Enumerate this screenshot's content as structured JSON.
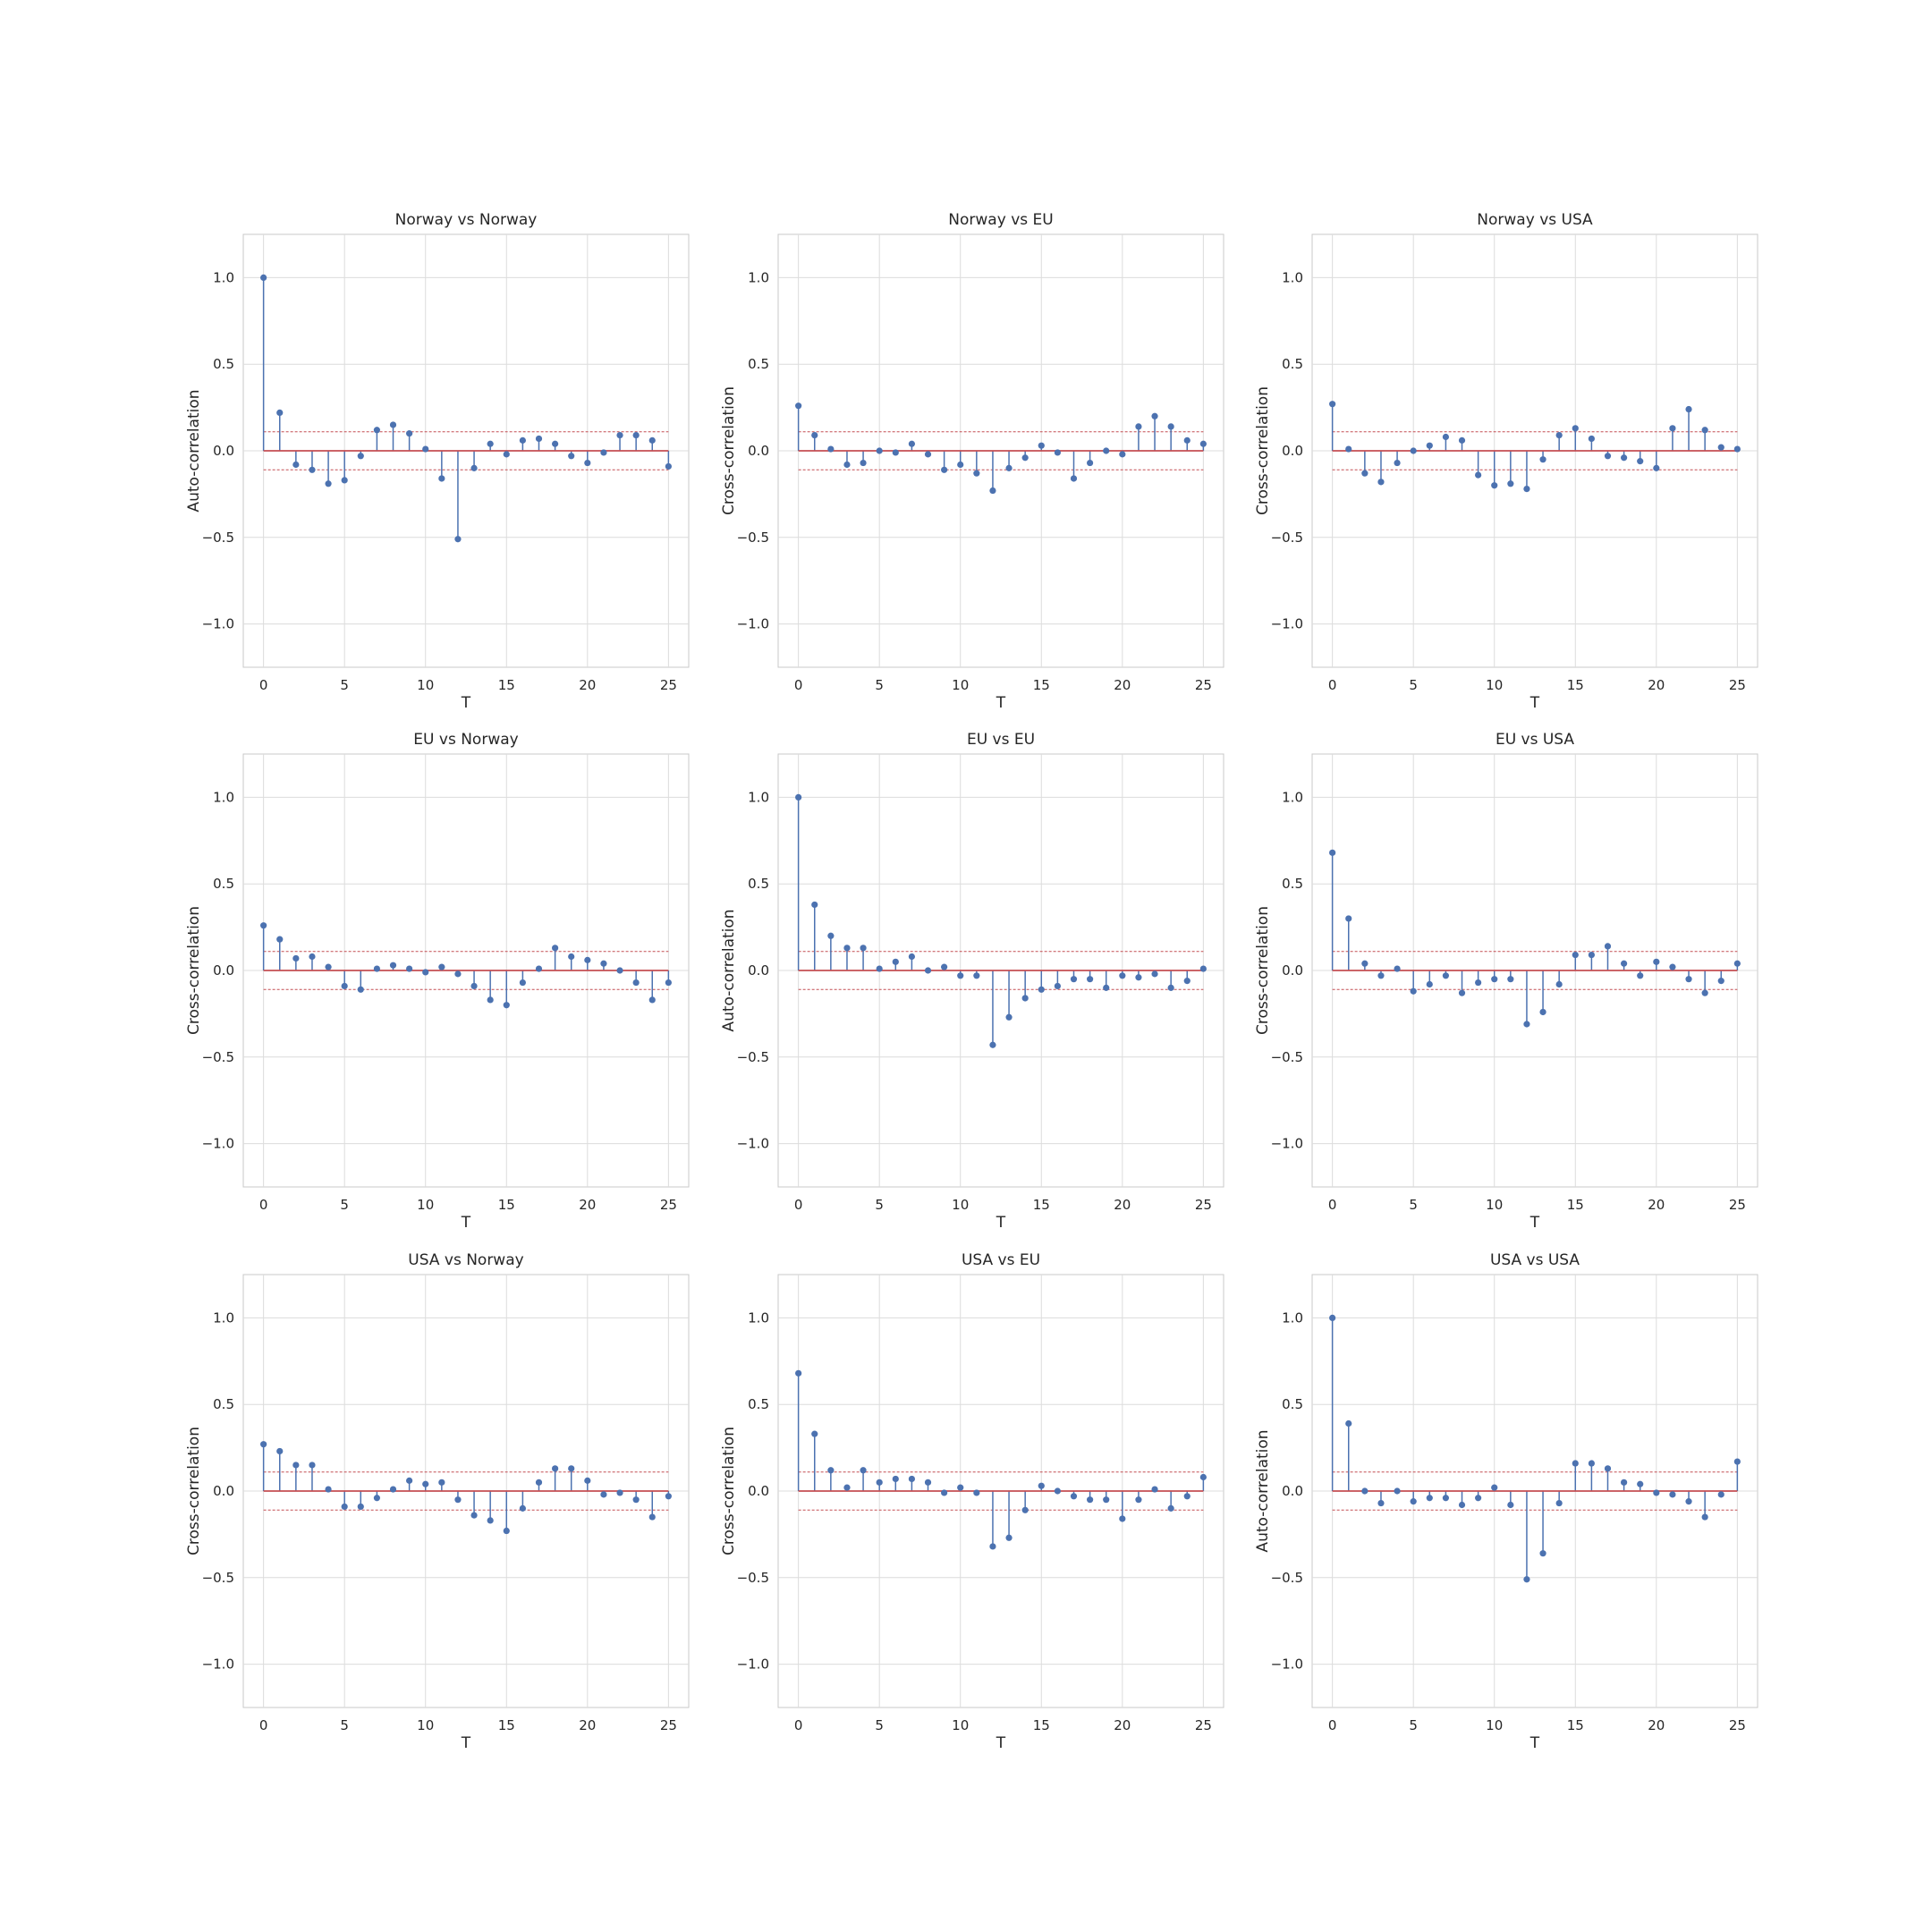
{
  "style": {
    "stem_color": "#4c72b0",
    "baseline_color": "#c44e52",
    "conf_color": "#c44e52",
    "grid_color": "#dcdcdc",
    "frame_color": "#c8c8c8",
    "text_color": "#262626"
  },
  "chart_data": [
    {
      "type": "stem",
      "title": "Norway vs Norway",
      "xlabel": "T",
      "ylabel": "Auto-correlation",
      "xlim": [
        -1.25,
        26.25
      ],
      "ylim": [
        -1.25,
        1.25
      ],
      "xticks": [
        0,
        5,
        10,
        15,
        20,
        25
      ],
      "yticks": [
        -1.0,
        -0.5,
        0.0,
        0.5,
        1.0
      ],
      "ytick_labels": [
        "−1.0",
        "−0.5",
        "0.0",
        "0.5",
        "1.0"
      ],
      "grid": true,
      "conf_band": 0.11,
      "x": [
        0,
        1,
        2,
        3,
        4,
        5,
        6,
        7,
        8,
        9,
        10,
        11,
        12,
        13,
        14,
        15,
        16,
        17,
        18,
        19,
        20,
        21,
        22,
        23,
        24,
        25
      ],
      "values": [
        1.0,
        0.22,
        -0.08,
        -0.11,
        -0.19,
        -0.17,
        -0.03,
        0.12,
        0.15,
        0.1,
        0.01,
        -0.16,
        -0.51,
        -0.1,
        0.04,
        -0.02,
        0.06,
        0.07,
        0.04,
        -0.03,
        -0.07,
        -0.01,
        0.09,
        0.09,
        0.06,
        -0.09
      ]
    },
    {
      "type": "stem",
      "title": "Norway vs EU",
      "xlabel": "T",
      "ylabel": "Cross-correlation",
      "xlim": [
        -1.25,
        26.25
      ],
      "ylim": [
        -1.25,
        1.25
      ],
      "xticks": [
        0,
        5,
        10,
        15,
        20,
        25
      ],
      "yticks": [
        -1.0,
        -0.5,
        0.0,
        0.5,
        1.0
      ],
      "ytick_labels": [
        "−1.0",
        "−0.5",
        "0.0",
        "0.5",
        "1.0"
      ],
      "grid": true,
      "conf_band": 0.11,
      "x": [
        0,
        1,
        2,
        3,
        4,
        5,
        6,
        7,
        8,
        9,
        10,
        11,
        12,
        13,
        14,
        15,
        16,
        17,
        18,
        19,
        20,
        21,
        22,
        23,
        24,
        25
      ],
      "values": [
        0.26,
        0.09,
        0.01,
        -0.08,
        -0.07,
        0.0,
        -0.01,
        0.04,
        -0.02,
        -0.11,
        -0.08,
        -0.13,
        -0.23,
        -0.1,
        -0.04,
        0.03,
        -0.01,
        -0.16,
        -0.07,
        0.0,
        -0.02,
        0.14,
        0.2,
        0.14,
        0.06,
        0.04
      ]
    },
    {
      "type": "stem",
      "title": "Norway vs USA",
      "xlabel": "T",
      "ylabel": "Cross-correlation",
      "xlim": [
        -1.25,
        26.25
      ],
      "ylim": [
        -1.25,
        1.25
      ],
      "xticks": [
        0,
        5,
        10,
        15,
        20,
        25
      ],
      "yticks": [
        -1.0,
        -0.5,
        0.0,
        0.5,
        1.0
      ],
      "ytick_labels": [
        "−1.0",
        "−0.5",
        "0.0",
        "0.5",
        "1.0"
      ],
      "grid": true,
      "conf_band": 0.11,
      "x": [
        0,
        1,
        2,
        3,
        4,
        5,
        6,
        7,
        8,
        9,
        10,
        11,
        12,
        13,
        14,
        15,
        16,
        17,
        18,
        19,
        20,
        21,
        22,
        23,
        24,
        25
      ],
      "values": [
        0.27,
        0.01,
        -0.13,
        -0.18,
        -0.07,
        0.0,
        0.03,
        0.08,
        0.06,
        -0.14,
        -0.2,
        -0.19,
        -0.22,
        -0.05,
        0.09,
        0.13,
        0.07,
        -0.03,
        -0.04,
        -0.06,
        -0.1,
        0.13,
        0.24,
        0.12,
        0.02,
        0.01
      ]
    },
    {
      "type": "stem",
      "title": "EU vs Norway",
      "xlabel": "T",
      "ylabel": "Cross-correlation",
      "xlim": [
        -1.25,
        26.25
      ],
      "ylim": [
        -1.25,
        1.25
      ],
      "xticks": [
        0,
        5,
        10,
        15,
        20,
        25
      ],
      "yticks": [
        -1.0,
        -0.5,
        0.0,
        0.5,
        1.0
      ],
      "ytick_labels": [
        "−1.0",
        "−0.5",
        "0.0",
        "0.5",
        "1.0"
      ],
      "grid": true,
      "conf_band": 0.11,
      "x": [
        0,
        1,
        2,
        3,
        4,
        5,
        6,
        7,
        8,
        9,
        10,
        11,
        12,
        13,
        14,
        15,
        16,
        17,
        18,
        19,
        20,
        21,
        22,
        23,
        24,
        25
      ],
      "values": [
        0.26,
        0.18,
        0.07,
        0.08,
        0.02,
        -0.09,
        -0.11,
        0.01,
        0.03,
        0.01,
        -0.01,
        0.02,
        -0.02,
        -0.09,
        -0.17,
        -0.2,
        -0.07,
        0.01,
        0.13,
        0.08,
        0.06,
        0.04,
        0.0,
        -0.07,
        -0.17,
        -0.07
      ]
    },
    {
      "type": "stem",
      "title": "EU vs EU",
      "xlabel": "T",
      "ylabel": "Auto-correlation",
      "xlim": [
        -1.25,
        26.25
      ],
      "ylim": [
        -1.25,
        1.25
      ],
      "xticks": [
        0,
        5,
        10,
        15,
        20,
        25
      ],
      "yticks": [
        -1.0,
        -0.5,
        0.0,
        0.5,
        1.0
      ],
      "ytick_labels": [
        "−1.0",
        "−0.5",
        "0.0",
        "0.5",
        "1.0"
      ],
      "grid": true,
      "conf_band": 0.11,
      "x": [
        0,
        1,
        2,
        3,
        4,
        5,
        6,
        7,
        8,
        9,
        10,
        11,
        12,
        13,
        14,
        15,
        16,
        17,
        18,
        19,
        20,
        21,
        22,
        23,
        24,
        25
      ],
      "values": [
        1.0,
        0.38,
        0.2,
        0.13,
        0.13,
        0.01,
        0.05,
        0.08,
        0.0,
        0.02,
        -0.03,
        -0.03,
        -0.43,
        -0.27,
        -0.16,
        -0.11,
        -0.09,
        -0.05,
        -0.05,
        -0.1,
        -0.03,
        -0.04,
        -0.02,
        -0.1,
        -0.06,
        0.01
      ]
    },
    {
      "type": "stem",
      "title": "EU vs USA",
      "xlabel": "T",
      "ylabel": "Cross-correlation",
      "xlim": [
        -1.25,
        26.25
      ],
      "ylim": [
        -1.25,
        1.25
      ],
      "xticks": [
        0,
        5,
        10,
        15,
        20,
        25
      ],
      "yticks": [
        -1.0,
        -0.5,
        0.0,
        0.5,
        1.0
      ],
      "ytick_labels": [
        "−1.0",
        "−0.5",
        "0.0",
        "0.5",
        "1.0"
      ],
      "grid": true,
      "conf_band": 0.11,
      "x": [
        0,
        1,
        2,
        3,
        4,
        5,
        6,
        7,
        8,
        9,
        10,
        11,
        12,
        13,
        14,
        15,
        16,
        17,
        18,
        19,
        20,
        21,
        22,
        23,
        24,
        25
      ],
      "values": [
        0.68,
        0.3,
        0.04,
        -0.03,
        0.01,
        -0.12,
        -0.08,
        -0.03,
        -0.13,
        -0.07,
        -0.05,
        -0.05,
        -0.31,
        -0.24,
        -0.08,
        0.09,
        0.09,
        0.14,
        0.04,
        -0.03,
        0.05,
        0.02,
        -0.05,
        -0.13,
        -0.06,
        0.04
      ]
    },
    {
      "type": "stem",
      "title": "USA vs Norway",
      "xlabel": "T",
      "ylabel": "Cross-correlation",
      "xlim": [
        -1.25,
        26.25
      ],
      "ylim": [
        -1.25,
        1.25
      ],
      "xticks": [
        0,
        5,
        10,
        15,
        20,
        25
      ],
      "yticks": [
        -1.0,
        -0.5,
        0.0,
        0.5,
        1.0
      ],
      "ytick_labels": [
        "−1.0",
        "−0.5",
        "0.0",
        "0.5",
        "1.0"
      ],
      "grid": true,
      "conf_band": 0.11,
      "x": [
        0,
        1,
        2,
        3,
        4,
        5,
        6,
        7,
        8,
        9,
        10,
        11,
        12,
        13,
        14,
        15,
        16,
        17,
        18,
        19,
        20,
        21,
        22,
        23,
        24,
        25
      ],
      "values": [
        0.27,
        0.23,
        0.15,
        0.15,
        0.01,
        -0.09,
        -0.09,
        -0.04,
        0.01,
        0.06,
        0.04,
        0.05,
        -0.05,
        -0.14,
        -0.17,
        -0.23,
        -0.1,
        0.05,
        0.13,
        0.13,
        0.06,
        -0.02,
        -0.01,
        -0.05,
        -0.15,
        -0.03
      ]
    },
    {
      "type": "stem",
      "title": "USA vs EU",
      "xlabel": "T",
      "ylabel": "Cross-correlation",
      "xlim": [
        -1.25,
        26.25
      ],
      "ylim": [
        -1.25,
        1.25
      ],
      "xticks": [
        0,
        5,
        10,
        15,
        20,
        25
      ],
      "yticks": [
        -1.0,
        -0.5,
        0.0,
        0.5,
        1.0
      ],
      "ytick_labels": [
        "−1.0",
        "−0.5",
        "0.0",
        "0.5",
        "1.0"
      ],
      "grid": true,
      "conf_band": 0.11,
      "x": [
        0,
        1,
        2,
        3,
        4,
        5,
        6,
        7,
        8,
        9,
        10,
        11,
        12,
        13,
        14,
        15,
        16,
        17,
        18,
        19,
        20,
        21,
        22,
        23,
        24,
        25
      ],
      "values": [
        0.68,
        0.33,
        0.12,
        0.02,
        0.12,
        0.05,
        0.07,
        0.07,
        0.05,
        -0.01,
        0.02,
        -0.01,
        -0.32,
        -0.27,
        -0.11,
        0.03,
        0.0,
        -0.03,
        -0.05,
        -0.05,
        -0.16,
        -0.05,
        0.01,
        -0.1,
        -0.03,
        0.08
      ]
    },
    {
      "type": "stem",
      "title": "USA vs USA",
      "xlabel": "T",
      "ylabel": "Auto-correlation",
      "xlim": [
        -1.25,
        26.25
      ],
      "ylim": [
        -1.25,
        1.25
      ],
      "xticks": [
        0,
        5,
        10,
        15,
        20,
        25
      ],
      "yticks": [
        -1.0,
        -0.5,
        0.0,
        0.5,
        1.0
      ],
      "ytick_labels": [
        "−1.0",
        "−0.5",
        "0.0",
        "0.5",
        "1.0"
      ],
      "grid": true,
      "conf_band": 0.11,
      "x": [
        0,
        1,
        2,
        3,
        4,
        5,
        6,
        7,
        8,
        9,
        10,
        11,
        12,
        13,
        14,
        15,
        16,
        17,
        18,
        19,
        20,
        21,
        22,
        23,
        24,
        25
      ],
      "values": [
        1.0,
        0.39,
        0.0,
        -0.07,
        0.0,
        -0.06,
        -0.04,
        -0.04,
        -0.08,
        -0.04,
        0.02,
        -0.08,
        -0.51,
        -0.36,
        -0.07,
        0.16,
        0.16,
        0.13,
        0.05,
        0.04,
        -0.01,
        -0.02,
        -0.06,
        -0.15,
        -0.02,
        0.17
      ]
    }
  ]
}
